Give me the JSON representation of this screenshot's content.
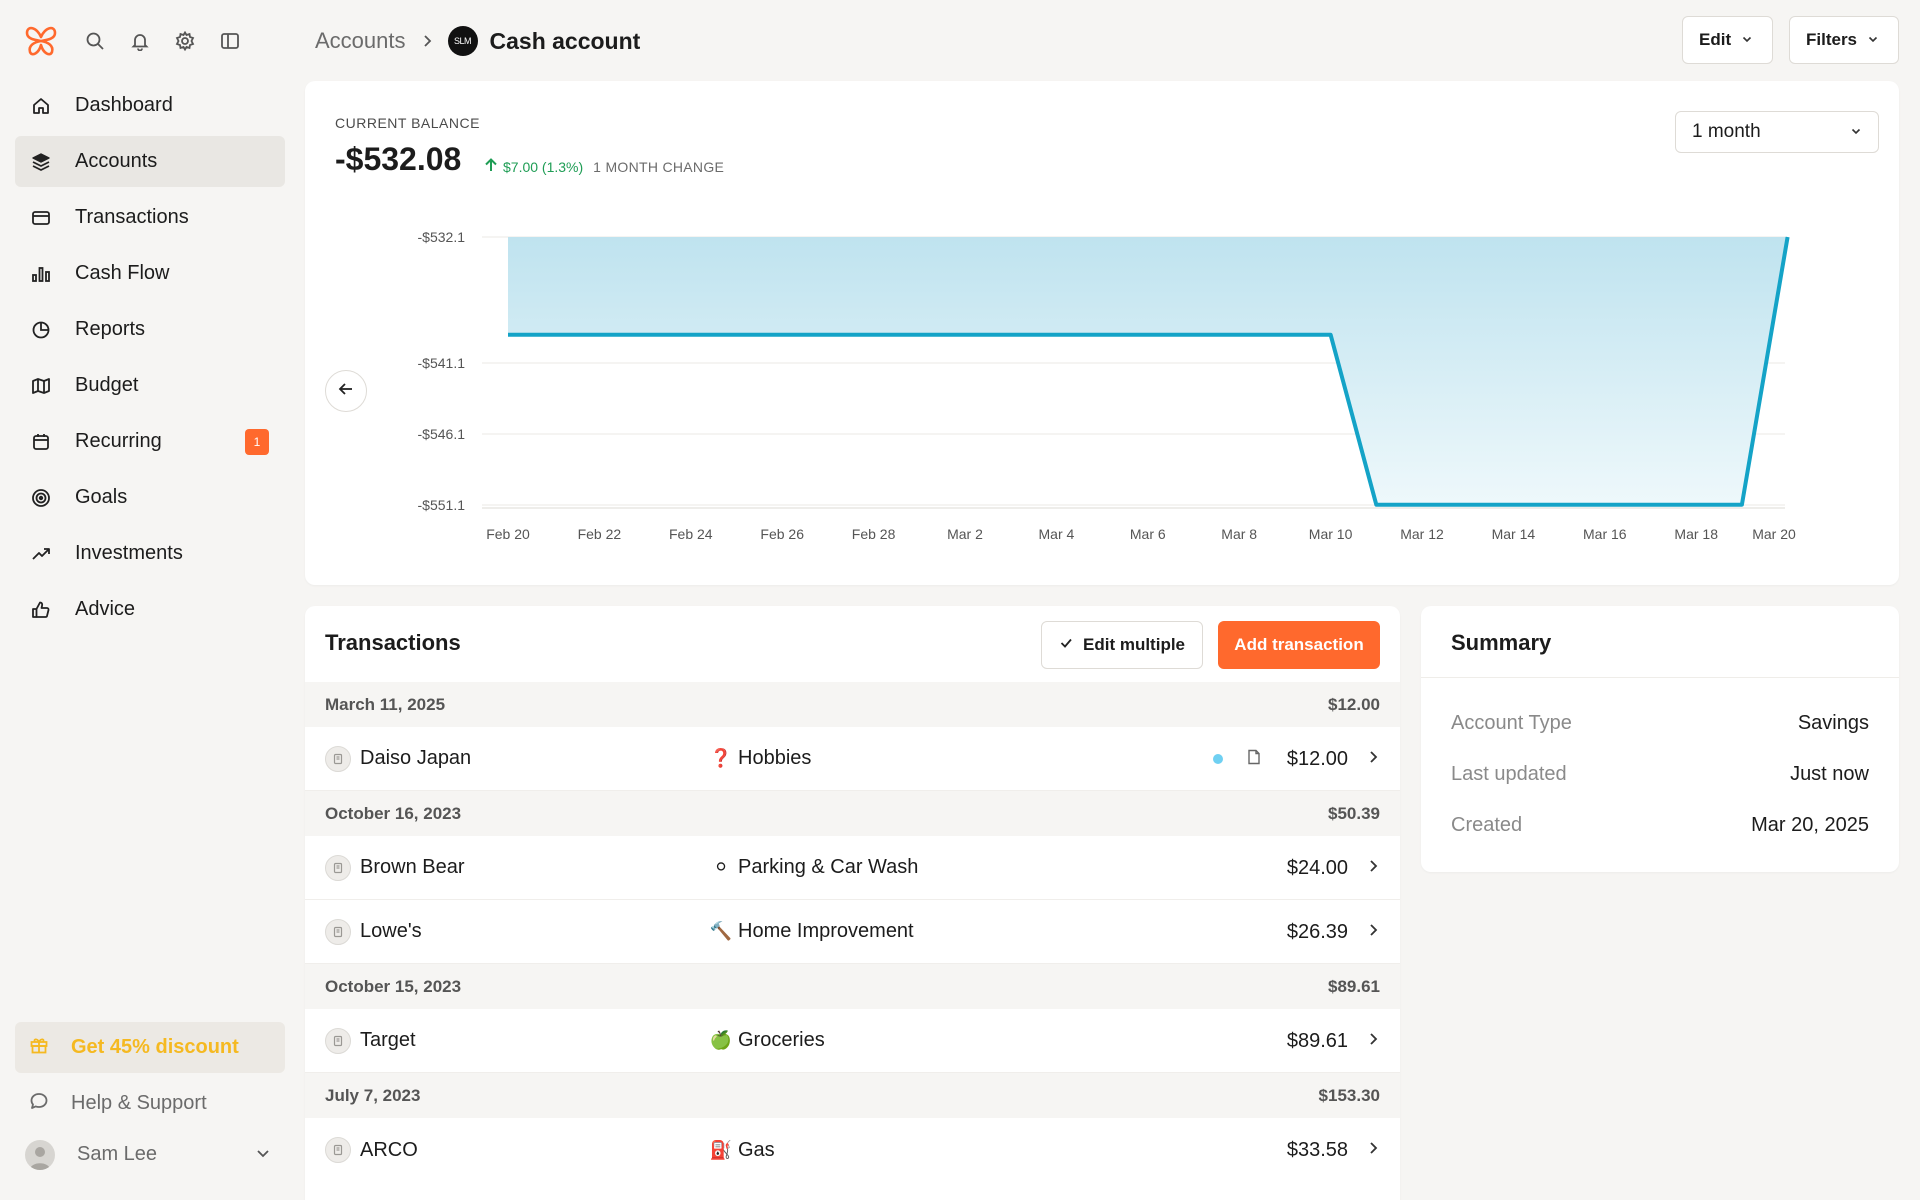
{
  "sidebar": {
    "items": [
      {
        "label": "Dashboard",
        "icon": "home-icon"
      },
      {
        "label": "Accounts",
        "icon": "layers-icon"
      },
      {
        "label": "Transactions",
        "icon": "credit-card-icon"
      },
      {
        "label": "Cash Flow",
        "icon": "bar-chart-icon"
      },
      {
        "label": "Reports",
        "icon": "pie-chart-icon"
      },
      {
        "label": "Budget",
        "icon": "map-icon"
      },
      {
        "label": "Recurring",
        "icon": "calendar-icon",
        "badge": "1"
      },
      {
        "label": "Goals",
        "icon": "target-icon"
      },
      {
        "label": "Investments",
        "icon": "trending-up-icon"
      },
      {
        "label": "Advice",
        "icon": "thumbs-up-icon"
      }
    ],
    "active": "Accounts",
    "discount_label": "Get 45% discount",
    "help_label": "Help & Support",
    "user_name": "Sam Lee"
  },
  "header": {
    "breadcrumb_parent": "Accounts",
    "account_logo_text": "SLM",
    "breadcrumb_current": "Cash account",
    "edit_label": "Edit",
    "filters_label": "Filters"
  },
  "balance": {
    "label": "CURRENT BALANCE",
    "value": "-$532.08",
    "change_amount": "$7.00 (1.3%)",
    "change_label": "1 MONTH CHANGE",
    "range": "1 month"
  },
  "chart_data": {
    "type": "area",
    "x": [
      "Feb 20",
      "Mar 10",
      "Mar 11",
      "Mar 19",
      "Mar 20"
    ],
    "values": [
      -539.08,
      -539.08,
      -551.08,
      -551.08,
      -532.08
    ],
    "xticks": [
      "Feb 20",
      "Feb 22",
      "Feb 24",
      "Feb 26",
      "Feb 28",
      "Mar 2",
      "Mar 4",
      "Mar 6",
      "Mar 8",
      "Mar 10",
      "Mar 12",
      "Mar 14",
      "Mar 16",
      "Mar 18",
      "Mar 20"
    ],
    "yticks": [
      "-$532.1",
      "-$541.1",
      "-$546.1",
      "-$551.1"
    ],
    "line_color": "#14a3c7",
    "fill_color": "#bfe3ef"
  },
  "transactions": {
    "title": "Transactions",
    "edit_multiple_label": "Edit multiple",
    "add_label": "Add transaction",
    "groups": [
      {
        "date": "March 11, 2025",
        "total": "$12.00",
        "rows": [
          {
            "merchant": "Daiso Japan",
            "category": "Hobbies",
            "emoji": "❓",
            "amount": "$12.00",
            "has_extra": true
          }
        ]
      },
      {
        "date": "October 16, 2023",
        "total": "$50.39",
        "rows": [
          {
            "merchant": "Brown Bear",
            "category": "Parking & Car Wash",
            "emoji": "⚪",
            "amount": "$24.00",
            "has_extra": false
          },
          {
            "merchant": "Lowe's",
            "category": "Home Improvement",
            "emoji": "🔨",
            "amount": "$26.39",
            "has_extra": false
          }
        ]
      },
      {
        "date": "October 15, 2023",
        "total": "$89.61",
        "rows": [
          {
            "merchant": "Target",
            "category": "Groceries",
            "emoji": "🍏",
            "amount": "$89.61",
            "has_extra": false
          }
        ]
      },
      {
        "date": "July 7, 2023",
        "total": "$153.30",
        "rows": [
          {
            "merchant": "ARCO",
            "category": "Gas",
            "emoji": "⛽",
            "amount": "$33.58",
            "has_extra": false
          }
        ]
      }
    ]
  },
  "summary": {
    "title": "Summary",
    "rows": [
      {
        "key": "Account Type",
        "value": "Savings"
      },
      {
        "key": "Last updated",
        "value": "Just now"
      },
      {
        "key": "Created",
        "value": "Mar 20, 2025"
      }
    ]
  }
}
